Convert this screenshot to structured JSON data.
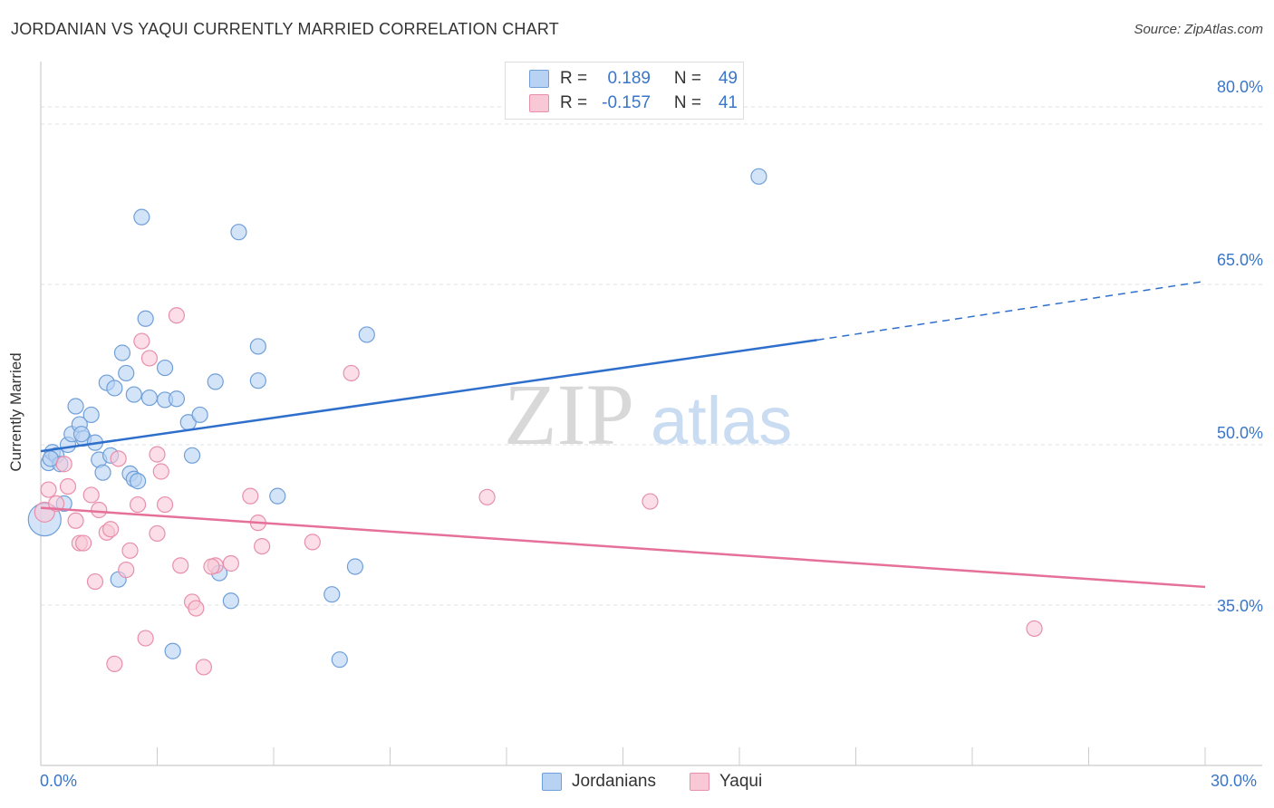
{
  "title": "JORDANIAN VS YAQUI CURRENTLY MARRIED CORRELATION CHART",
  "source": "Source: ZipAtlas.com",
  "watermark": {
    "zip": "ZIP",
    "atlas": "atlas"
  },
  "legend": {
    "rows": [
      {
        "r_label": "R =",
        "r_value": "0.189",
        "n_label": "N =",
        "n_value": "49"
      },
      {
        "r_label": "R =",
        "r_value": "-0.157",
        "n_label": "N =",
        "n_value": "41"
      }
    ]
  },
  "bottom_legend": [
    "Jordanians",
    "Yaqui"
  ],
  "colors": {
    "jordanians_fill": "#b8d2f3",
    "jordanians_stroke": "#6f9fd8",
    "jordanians_line": "#2f6fcc",
    "yaqui_fill": "#f9c8d7",
    "yaqui_stroke": "#e88fab",
    "yaqui_line": "#e5709a",
    "tick_text": "#3a76c8",
    "grid": "#dde3ea"
  },
  "chart_data": {
    "type": "scatter",
    "title": "JORDANIAN VS YAQUI CURRENTLY MARRIED CORRELATION CHART",
    "xlabel": "",
    "ylabel": "Currently Married",
    "xlim": [
      0,
      30
    ],
    "ylim": [
      20,
      85
    ],
    "x_tick_labels": [
      "0.0%",
      "30.0%"
    ],
    "y_ticks": [
      35,
      50,
      65,
      80
    ],
    "y_tick_labels": [
      "35.0%",
      "50.0%",
      "65.0%",
      "80.0%"
    ],
    "grid": true,
    "series": [
      {
        "name": "Jordanians",
        "r": 0.189,
        "n": 49,
        "trend": {
          "x0": 0,
          "y0": 49.4,
          "x1": 20,
          "y1": 59.8,
          "dashed_to_x": 30,
          "dashed_to_y": 65.3
        },
        "points": [
          [
            0.1,
            43.0
          ],
          [
            0.2,
            48.3
          ],
          [
            0.3,
            49.3
          ],
          [
            0.4,
            49.0
          ],
          [
            0.5,
            48.2
          ],
          [
            0.6,
            44.5
          ],
          [
            0.7,
            50.0
          ],
          [
            0.8,
            51.0
          ],
          [
            0.9,
            53.6
          ],
          [
            1.0,
            51.9
          ],
          [
            1.1,
            50.6
          ],
          [
            1.3,
            52.8
          ],
          [
            1.4,
            50.2
          ],
          [
            1.5,
            48.6
          ],
          [
            1.6,
            47.4
          ],
          [
            1.7,
            55.8
          ],
          [
            1.8,
            49.0
          ],
          [
            1.9,
            55.3
          ],
          [
            2.0,
            37.4
          ],
          [
            2.1,
            58.6
          ],
          [
            2.2,
            56.7
          ],
          [
            2.3,
            47.3
          ],
          [
            2.4,
            46.8
          ],
          [
            2.4,
            54.7
          ],
          [
            2.5,
            46.6
          ],
          [
            2.6,
            71.3
          ],
          [
            2.7,
            61.8
          ],
          [
            2.8,
            54.4
          ],
          [
            3.2,
            54.2
          ],
          [
            3.2,
            57.2
          ],
          [
            3.4,
            30.7
          ],
          [
            3.5,
            54.3
          ],
          [
            3.8,
            52.1
          ],
          [
            3.9,
            49.0
          ],
          [
            4.1,
            52.8
          ],
          [
            4.5,
            55.9
          ],
          [
            4.6,
            38.0
          ],
          [
            4.9,
            35.4
          ],
          [
            5.1,
            69.9
          ],
          [
            5.6,
            59.2
          ],
          [
            5.6,
            56.0
          ],
          [
            6.1,
            45.2
          ],
          [
            7.5,
            36.0
          ],
          [
            7.7,
            29.9
          ],
          [
            8.1,
            38.6
          ],
          [
            8.4,
            60.3
          ],
          [
            18.5,
            75.1
          ],
          [
            0.25,
            48.7
          ],
          [
            1.05,
            51.0
          ]
        ]
      },
      {
        "name": "Yaqui",
        "r": -0.157,
        "n": 41,
        "trend": {
          "x0": 0,
          "y0": 44.1,
          "x1": 30,
          "y1": 36.7
        },
        "points": [
          [
            0.1,
            43.7
          ],
          [
            0.2,
            45.8
          ],
          [
            0.4,
            44.5
          ],
          [
            0.6,
            48.2
          ],
          [
            0.7,
            46.1
          ],
          [
            0.9,
            42.9
          ],
          [
            1.0,
            40.8
          ],
          [
            1.1,
            40.8
          ],
          [
            1.3,
            45.3
          ],
          [
            1.4,
            37.2
          ],
          [
            1.5,
            43.9
          ],
          [
            1.7,
            41.8
          ],
          [
            1.8,
            42.1
          ],
          [
            2.0,
            48.7
          ],
          [
            2.2,
            38.3
          ],
          [
            2.3,
            40.1
          ],
          [
            2.5,
            44.4
          ],
          [
            2.6,
            59.7
          ],
          [
            2.7,
            31.9
          ],
          [
            2.8,
            58.1
          ],
          [
            3.0,
            41.7
          ],
          [
            3.0,
            49.1
          ],
          [
            3.1,
            47.5
          ],
          [
            3.2,
            44.4
          ],
          [
            3.6,
            38.7
          ],
          [
            3.9,
            35.3
          ],
          [
            4.0,
            34.7
          ],
          [
            4.2,
            29.2
          ],
          [
            4.5,
            38.7
          ],
          [
            4.4,
            38.6
          ],
          [
            4.9,
            38.9
          ],
          [
            5.4,
            45.2
          ],
          [
            5.6,
            42.7
          ],
          [
            5.7,
            40.5
          ],
          [
            7.0,
            40.9
          ],
          [
            8.0,
            56.7
          ],
          [
            11.5,
            45.1
          ],
          [
            15.7,
            44.7
          ],
          [
            25.6,
            32.8
          ],
          [
            3.5,
            62.1
          ],
          [
            1.9,
            29.5
          ]
        ]
      }
    ]
  }
}
